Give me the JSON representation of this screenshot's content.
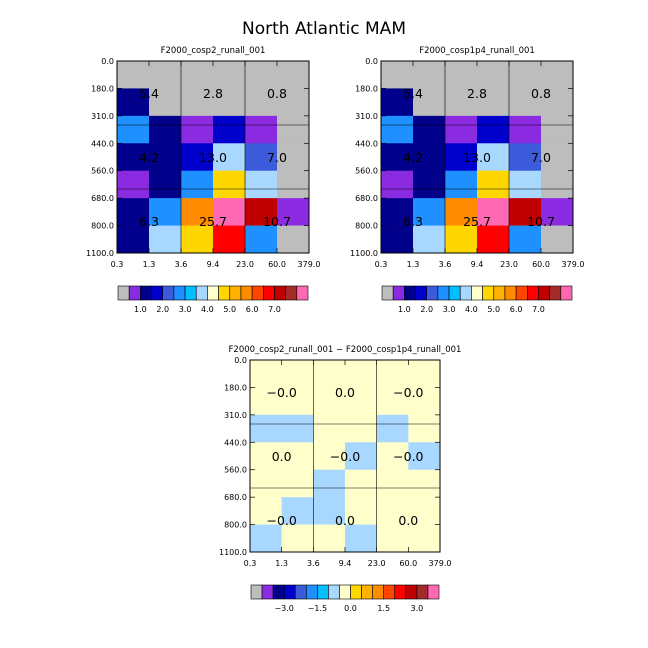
{
  "figure_title": "North Atlantic MAM",
  "palette": {
    "colors": [
      "#bdbdbd",
      "#8a2be2",
      "#00008b",
      "#0000cd",
      "#3b5bdb",
      "#1e90ff",
      "#00bfff",
      "#a8d8ff",
      "#ffffcc",
      "#ffd700",
      "#ffb000",
      "#ff8c00",
      "#ff4500",
      "#ff0000",
      "#c00000",
      "#a52a2a",
      "#ff69b4"
    ],
    "abs_values": {
      "gray": "#bdbdbd",
      "purple": "#8a2be2",
      "navy": "#00008b",
      "blue": "#0000cd",
      "royal": "#3b5bdb",
      "dodger": "#1e90ff",
      "sky": "#a8d8ff",
      "cream": "#ffffcc",
      "gold": "#ffd700",
      "orange": "#ff8c00",
      "red": "#ff0000",
      "darkred": "#c00000",
      "pink": "#ff69b4"
    }
  },
  "chart_data": [
    {
      "type": "heatmap",
      "title": "F2000_cosp2_runall_001",
      "x_ticks": [
        "0.3",
        "1.3",
        "3.6",
        "9.4",
        "23.0",
        "60.0",
        "379.0"
      ],
      "y_ticks": [
        "0.0",
        "180.0",
        "310.0",
        "440.0",
        "560.0",
        "680.0",
        "800.0",
        "1100.0"
      ],
      "cells": [
        [
          "#bdbdbd",
          "#bdbdbd",
          "#bdbdbd",
          "#bdbdbd",
          "#bdbdbd",
          "#bdbdbd"
        ],
        [
          "#00008b",
          "#bdbdbd",
          "#bdbdbd",
          "#bdbdbd",
          "#bdbdbd",
          "#bdbdbd"
        ],
        [
          "#1e90ff",
          "#00008b",
          "#8a2be2",
          "#0000cd",
          "#8a2be2",
          "#bdbdbd"
        ],
        [
          "#00008b",
          "#00008b",
          "#0000cd",
          "#a8d8ff",
          "#3b5bdb",
          "#bdbdbd"
        ],
        [
          "#8a2be2",
          "#00008b",
          "#1e90ff",
          "#ffd700",
          "#a8d8ff",
          "#bdbdbd"
        ],
        [
          "#00008b",
          "#1e90ff",
          "#ff8c00",
          "#ff69b4",
          "#c00000",
          "#8a2be2"
        ],
        [
          "#00008b",
          "#a8d8ff",
          "#ffd700",
          "#ff0000",
          "#1e90ff",
          "#bdbdbd"
        ]
      ],
      "labels": [
        [
          "5.4",
          "2.8",
          "0.8"
        ],
        [
          "4.2",
          "13.0",
          "7.0"
        ],
        [
          "6.3",
          "25.7",
          "10.7"
        ]
      ],
      "colorbar": {
        "colors": [
          "#bdbdbd",
          "#8a2be2",
          "#00008b",
          "#0000cd",
          "#3b5bdb",
          "#1e90ff",
          "#00bfff",
          "#a8d8ff",
          "#ffffcc",
          "#ffd700",
          "#ffb000",
          "#ff8c00",
          "#ff4500",
          "#ff0000",
          "#c00000",
          "#a52a2a",
          "#ff69b4"
        ],
        "tick_labels": [
          "1.0",
          "2.0",
          "3.0",
          "4.0",
          "5.0",
          "6.0",
          "7.0"
        ],
        "tick_boundaries": [
          2,
          4,
          6,
          8,
          10,
          12,
          14
        ]
      }
    },
    {
      "type": "heatmap",
      "title": "F2000_cosp1p4_runall_001",
      "x_ticks": [
        "0.3",
        "1.3",
        "3.6",
        "9.4",
        "23.0",
        "60.0",
        "379.0"
      ],
      "y_ticks": [
        "0.0",
        "180.0",
        "310.0",
        "440.0",
        "560.0",
        "680.0",
        "800.0",
        "1100.0"
      ],
      "cells": [
        [
          "#bdbdbd",
          "#bdbdbd",
          "#bdbdbd",
          "#bdbdbd",
          "#bdbdbd",
          "#bdbdbd"
        ],
        [
          "#00008b",
          "#bdbdbd",
          "#bdbdbd",
          "#bdbdbd",
          "#bdbdbd",
          "#bdbdbd"
        ],
        [
          "#1e90ff",
          "#00008b",
          "#8a2be2",
          "#0000cd",
          "#8a2be2",
          "#bdbdbd"
        ],
        [
          "#00008b",
          "#00008b",
          "#0000cd",
          "#a8d8ff",
          "#3b5bdb",
          "#bdbdbd"
        ],
        [
          "#8a2be2",
          "#00008b",
          "#1e90ff",
          "#ffd700",
          "#a8d8ff",
          "#bdbdbd"
        ],
        [
          "#00008b",
          "#1e90ff",
          "#ff8c00",
          "#ff69b4",
          "#c00000",
          "#8a2be2"
        ],
        [
          "#00008b",
          "#a8d8ff",
          "#ffd700",
          "#ff0000",
          "#1e90ff",
          "#bdbdbd"
        ]
      ],
      "labels": [
        [
          "5.4",
          "2.8",
          "0.8"
        ],
        [
          "4.2",
          "13.0",
          "7.0"
        ],
        [
          "6.3",
          "25.7",
          "10.7"
        ]
      ],
      "colorbar": {
        "colors": [
          "#bdbdbd",
          "#8a2be2",
          "#00008b",
          "#0000cd",
          "#3b5bdb",
          "#1e90ff",
          "#00bfff",
          "#a8d8ff",
          "#ffffcc",
          "#ffd700",
          "#ffb000",
          "#ff8c00",
          "#ff4500",
          "#ff0000",
          "#c00000",
          "#a52a2a",
          "#ff69b4"
        ],
        "tick_labels": [
          "1.0",
          "2.0",
          "3.0",
          "4.0",
          "5.0",
          "6.0",
          "7.0"
        ],
        "tick_boundaries": [
          2,
          4,
          6,
          8,
          10,
          12,
          14
        ]
      }
    },
    {
      "type": "heatmap",
      "title": "F2000_cosp2_runall_001 − F2000_cosp1p4_runall_001",
      "x_ticks": [
        "0.3",
        "1.3",
        "3.6",
        "9.4",
        "23.0",
        "60.0",
        "379.0"
      ],
      "y_ticks": [
        "0.0",
        "180.0",
        "310.0",
        "440.0",
        "560.0",
        "680.0",
        "800.0",
        "1100.0"
      ],
      "cells": [
        [
          "#ffffcc",
          "#ffffcc",
          "#ffffcc",
          "#ffffcc",
          "#ffffcc",
          "#ffffcc"
        ],
        [
          "#ffffcc",
          "#ffffcc",
          "#ffffcc",
          "#ffffcc",
          "#ffffcc",
          "#ffffcc"
        ],
        [
          "#a8d8ff",
          "#a8d8ff",
          "#ffffcc",
          "#ffffcc",
          "#a8d8ff",
          "#ffffcc"
        ],
        [
          "#ffffcc",
          "#ffffcc",
          "#ffffcc",
          "#a8d8ff",
          "#ffffcc",
          "#a8d8ff"
        ],
        [
          "#ffffcc",
          "#ffffcc",
          "#a8d8ff",
          "#ffffcc",
          "#ffffcc",
          "#ffffcc"
        ],
        [
          "#ffffcc",
          "#a8d8ff",
          "#a8d8ff",
          "#ffffcc",
          "#ffffcc",
          "#ffffcc"
        ],
        [
          "#a8d8ff",
          "#ffffcc",
          "#ffffcc",
          "#a8d8ff",
          "#ffffcc",
          "#ffffcc"
        ]
      ],
      "labels": [
        [
          "−0.0",
          "0.0",
          "−0.0"
        ],
        [
          "0.0",
          "−0.0",
          "−0.0"
        ],
        [
          "−0.0",
          "0.0",
          "0.0"
        ]
      ],
      "colorbar": {
        "colors": [
          "#bdbdbd",
          "#8a2be2",
          "#00008b",
          "#0000cd",
          "#3b5bdb",
          "#1e90ff",
          "#00bfff",
          "#a8d8ff",
          "#ffffcc",
          "#ffd700",
          "#ffb000",
          "#ff8c00",
          "#ff4500",
          "#ff0000",
          "#c00000",
          "#a52a2a",
          "#ff69b4"
        ],
        "tick_labels": [
          "−3.0",
          "−1.5",
          "0.0",
          "1.5",
          "3.0"
        ],
        "tick_boundaries": [
          3,
          6,
          9,
          12,
          15
        ]
      }
    }
  ]
}
